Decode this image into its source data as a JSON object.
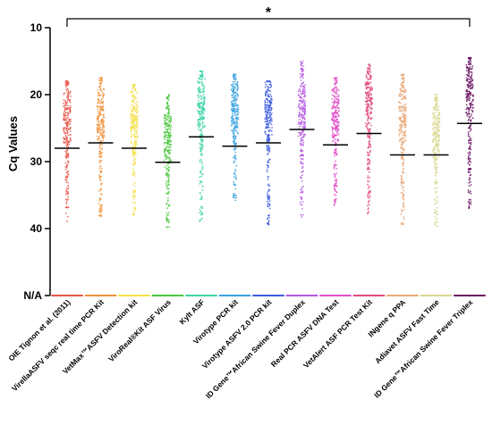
{
  "chart_data": {
    "type": "scatter",
    "ylabel": "Cq Values",
    "y_inverted": true,
    "yticks": [
      "10",
      "20",
      "30",
      "40",
      "N/A"
    ],
    "ylim": [
      10,
      40
    ],
    "significance": "*",
    "categories": [
      "OIE Tignon et al. (2011)",
      "VirellaASFV seqc real time PCR Kit",
      "VetMax™ASFV Detection kit",
      "ViroReal®Kit ASF Virus",
      "Kylt ASF",
      "Virotype PCR kit",
      "Virotype ASFV 2.0 PCR kit",
      "ID Gene™African Swine Fever Duplex",
      "Real PCR ASFV DNA Test",
      "VetAlert ASF PCR Test Kit",
      "INgene q PPA",
      "Adiavet ASFV Fast Time",
      "ID Gene™African Swine Fever Triplex"
    ],
    "series": [
      {
        "values": {
          "min": 18.0,
          "max": 39.0,
          "center": 23.5,
          "median": 28.0
        },
        "color": "#e8574a"
      },
      {
        "values": {
          "min": 17.5,
          "max": 38.5,
          "center": 23.0,
          "median": 27.2
        },
        "color": "#f0933c"
      },
      {
        "values": {
          "min": 18.5,
          "max": 38.0,
          "center": 23.5,
          "median": 28.0
        },
        "color": "#f3e14a"
      },
      {
        "values": {
          "min": 20.0,
          "max": 40.0,
          "center": 27.0,
          "median": 30.1
        },
        "color": "#4cc83e"
      },
      {
        "values": {
          "min": 16.5,
          "max": 39.0,
          "center": 21.5,
          "median": 26.3
        },
        "color": "#3ed4a8"
      },
      {
        "values": {
          "min": 17.0,
          "max": 36.0,
          "center": 22.0,
          "median": 27.7
        },
        "color": "#3aa2e0"
      },
      {
        "values": {
          "min": 18.0,
          "max": 39.5,
          "center": 22.0,
          "median": 27.2
        },
        "color": "#3d5ae0"
      },
      {
        "values": {
          "min": 15.0,
          "max": 38.5,
          "center": 22.5,
          "median": 25.2
        },
        "color": "#b45ae0"
      },
      {
        "values": {
          "min": 17.5,
          "max": 37.0,
          "center": 23.0,
          "median": 27.5
        },
        "color": "#e04fc8"
      },
      {
        "values": {
          "min": 15.5,
          "max": 38.0,
          "center": 21.0,
          "median": 25.8
        },
        "color": "#e04a82"
      },
      {
        "values": {
          "min": 17.0,
          "max": 39.5,
          "center": 23.0,
          "median": 29.0
        },
        "color": "#e8a878"
      },
      {
        "values": {
          "min": 20.0,
          "max": 40.5,
          "center": 25.5,
          "median": 29.0
        },
        "color": "#d8d890"
      },
      {
        "values": {
          "min": 14.5,
          "max": 37.0,
          "center": 19.5,
          "median": 24.3
        },
        "color": "#6a1060"
      }
    ]
  }
}
